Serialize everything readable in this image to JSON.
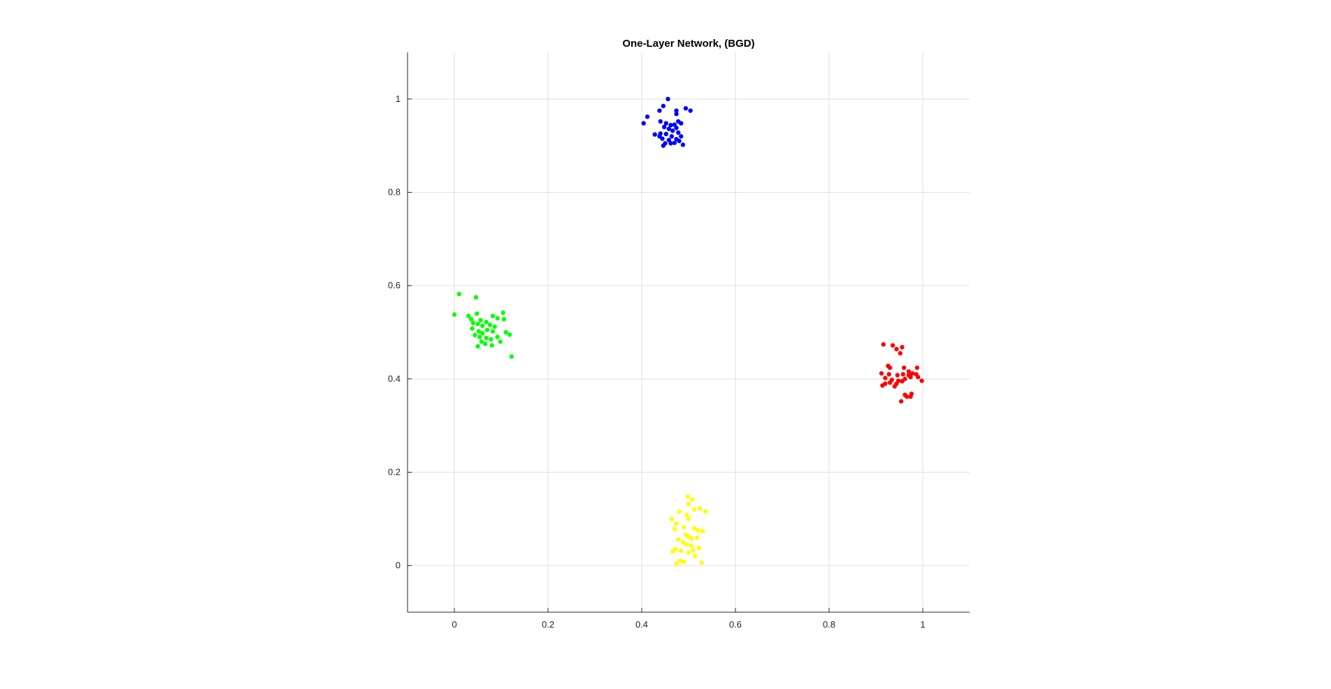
{
  "chart_data": {
    "type": "scatter",
    "title": "One-Layer Network, (BGD)",
    "xlabel": "",
    "ylabel": "",
    "xlim": [
      -0.1,
      1.1
    ],
    "ylim": [
      -0.1,
      1.1
    ],
    "x_ticks": [
      0,
      0.2,
      0.4,
      0.6,
      0.8,
      1
    ],
    "x_tick_labels": [
      "0",
      "0.2",
      "0.4",
      "0.6",
      "0.8",
      "1"
    ],
    "y_ticks": [
      0,
      0.2,
      0.4,
      0.6,
      0.8,
      1
    ],
    "y_tick_labels": [
      "0",
      "0.2",
      "0.4",
      "0.6",
      "0.8",
      "1"
    ],
    "grid": true,
    "legend": "none",
    "series": [
      {
        "color": "#0000ff",
        "points": [
          [
            0.456,
            1.0
          ],
          [
            0.446,
            0.985
          ],
          [
            0.494,
            0.98
          ],
          [
            0.504,
            0.975
          ],
          [
            0.474,
            0.975
          ],
          [
            0.474,
            0.968
          ],
          [
            0.412,
            0.962
          ],
          [
            0.438,
            0.975
          ],
          [
            0.404,
            0.948
          ],
          [
            0.44,
            0.952
          ],
          [
            0.452,
            0.948
          ],
          [
            0.462,
            0.944
          ],
          [
            0.47,
            0.945
          ],
          [
            0.478,
            0.952
          ],
          [
            0.484,
            0.948
          ],
          [
            0.448,
            0.94
          ],
          [
            0.458,
            0.936
          ],
          [
            0.466,
            0.932
          ],
          [
            0.44,
            0.926
          ],
          [
            0.428,
            0.924
          ],
          [
            0.438,
            0.92
          ],
          [
            0.452,
            0.925
          ],
          [
            0.464,
            0.92
          ],
          [
            0.478,
            0.928
          ],
          [
            0.484,
            0.92
          ],
          [
            0.444,
            0.915
          ],
          [
            0.458,
            0.912
          ],
          [
            0.474,
            0.914
          ],
          [
            0.48,
            0.91
          ],
          [
            0.45,
            0.905
          ],
          [
            0.462,
            0.905
          ],
          [
            0.47,
            0.906
          ],
          [
            0.446,
            0.9
          ],
          [
            0.488,
            0.902
          ],
          [
            0.474,
            0.938
          ]
        ]
      },
      {
        "color": "#00ff00",
        "points": [
          [
            0.01,
            0.582
          ],
          [
            0.046,
            0.575
          ],
          [
            0.0,
            0.538
          ],
          [
            0.03,
            0.535
          ],
          [
            0.048,
            0.54
          ],
          [
            0.036,
            0.528
          ],
          [
            0.056,
            0.526
          ],
          [
            0.068,
            0.522
          ],
          [
            0.082,
            0.535
          ],
          [
            0.092,
            0.53
          ],
          [
            0.104,
            0.542
          ],
          [
            0.106,
            0.528
          ],
          [
            0.04,
            0.52
          ],
          [
            0.05,
            0.518
          ],
          [
            0.06,
            0.514
          ],
          [
            0.076,
            0.516
          ],
          [
            0.086,
            0.512
          ],
          [
            0.038,
            0.508
          ],
          [
            0.052,
            0.502
          ],
          [
            0.07,
            0.505
          ],
          [
            0.082,
            0.502
          ],
          [
            0.06,
            0.498
          ],
          [
            0.044,
            0.494
          ],
          [
            0.054,
            0.49
          ],
          [
            0.068,
            0.488
          ],
          [
            0.078,
            0.485
          ],
          [
            0.092,
            0.49
          ],
          [
            0.11,
            0.5
          ],
          [
            0.118,
            0.495
          ],
          [
            0.066,
            0.475
          ],
          [
            0.08,
            0.472
          ],
          [
            0.05,
            0.47
          ],
          [
            0.098,
            0.48
          ],
          [
            0.122,
            0.448
          ],
          [
            0.058,
            0.48
          ]
        ]
      },
      {
        "color": "#ff0000",
        "points": [
          [
            0.916,
            0.474
          ],
          [
            0.936,
            0.472
          ],
          [
            0.956,
            0.468
          ],
          [
            0.944,
            0.464
          ],
          [
            0.952,
            0.455
          ],
          [
            0.926,
            0.428
          ],
          [
            0.93,
            0.424
          ],
          [
            0.96,
            0.424
          ],
          [
            0.97,
            0.416
          ],
          [
            0.988,
            0.424
          ],
          [
            0.912,
            0.412
          ],
          [
            0.928,
            0.41
          ],
          [
            0.946,
            0.408
          ],
          [
            0.958,
            0.41
          ],
          [
            0.97,
            0.408
          ],
          [
            0.978,
            0.412
          ],
          [
            0.986,
            0.41
          ],
          [
            0.92,
            0.402
          ],
          [
            0.934,
            0.398
          ],
          [
            0.948,
            0.396
          ],
          [
            0.962,
            0.4
          ],
          [
            0.974,
            0.404
          ],
          [
            0.99,
            0.404
          ],
          [
            0.93,
            0.392
          ],
          [
            0.944,
            0.39
          ],
          [
            0.956,
            0.395
          ],
          [
            0.998,
            0.396
          ],
          [
            0.914,
            0.386
          ],
          [
            0.94,
            0.384
          ],
          [
            0.962,
            0.366
          ],
          [
            0.976,
            0.368
          ],
          [
            0.966,
            0.362
          ],
          [
            0.974,
            0.362
          ],
          [
            0.954,
            0.352
          ],
          [
            0.92,
            0.39
          ]
        ]
      },
      {
        "color": "#ffff00",
        "points": [
          [
            0.498,
            0.148
          ],
          [
            0.508,
            0.142
          ],
          [
            0.5,
            0.132
          ],
          [
            0.524,
            0.122
          ],
          [
            0.512,
            0.12
          ],
          [
            0.536,
            0.116
          ],
          [
            0.48,
            0.116
          ],
          [
            0.496,
            0.108
          ],
          [
            0.5,
            0.1
          ],
          [
            0.464,
            0.1
          ],
          [
            0.474,
            0.09
          ],
          [
            0.49,
            0.082
          ],
          [
            0.512,
            0.08
          ],
          [
            0.52,
            0.076
          ],
          [
            0.53,
            0.074
          ],
          [
            0.47,
            0.078
          ],
          [
            0.494,
            0.066
          ],
          [
            0.5,
            0.062
          ],
          [
            0.506,
            0.058
          ],
          [
            0.518,
            0.06
          ],
          [
            0.478,
            0.056
          ],
          [
            0.488,
            0.05
          ],
          [
            0.496,
            0.045
          ],
          [
            0.506,
            0.042
          ],
          [
            0.472,
            0.035
          ],
          [
            0.484,
            0.032
          ],
          [
            0.5,
            0.028
          ],
          [
            0.51,
            0.032
          ],
          [
            0.466,
            0.03
          ],
          [
            0.514,
            0.02
          ],
          [
            0.482,
            0.01
          ],
          [
            0.474,
            0.004
          ],
          [
            0.49,
            0.008
          ],
          [
            0.528,
            0.006
          ],
          [
            0.522,
            0.038
          ]
        ]
      }
    ]
  }
}
